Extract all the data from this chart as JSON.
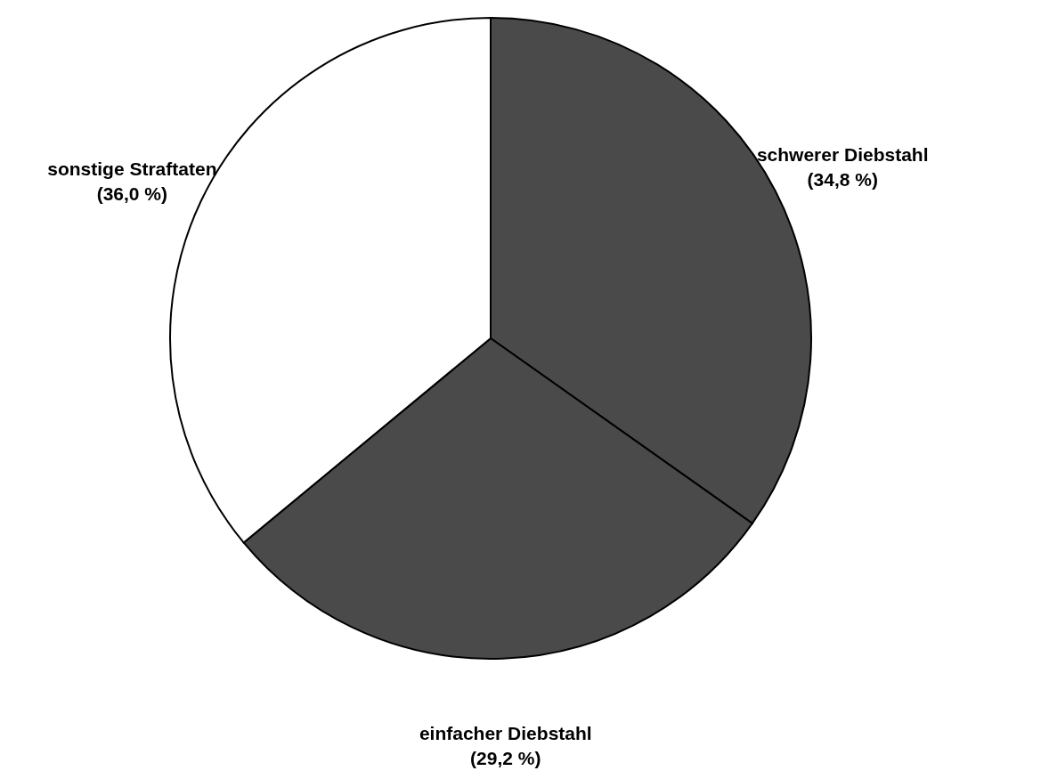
{
  "chart_data": {
    "type": "pie",
    "categories": [
      "schwerer Diebstahl",
      "einfacher Diebstahl",
      "sonstige Straftaten"
    ],
    "values": [
      34.8,
      29.2,
      36.0
    ],
    "colors": [
      "#4a4a4a",
      "#4a4a4a",
      "#ffffff"
    ],
    "value_labels": [
      "(34,8 %)",
      "(29,2 %)",
      "(36,0 %)"
    ]
  }
}
